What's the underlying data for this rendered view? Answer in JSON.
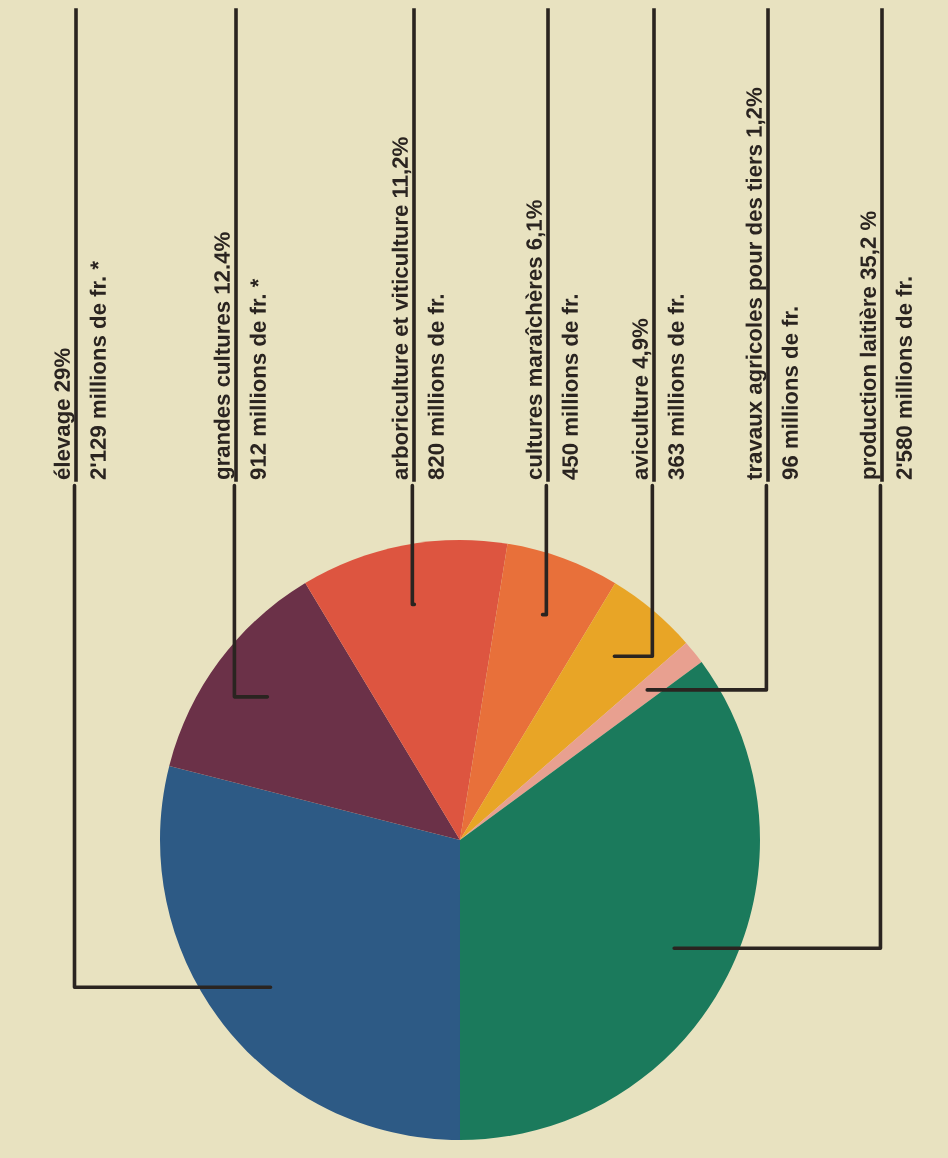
{
  "chart_data": {
    "type": "pie",
    "categories": [
      "élevage 29%",
      "grandes cultures 12.4%",
      "arboriculture et viticulture 11,2%",
      "cultures maraîchères 6,1%",
      "aviculture 4,9%",
      "travaux agricoles pour des tiers 1,2%",
      "production laitière 35,2 %"
    ],
    "values": [
      2129,
      912,
      820,
      450,
      363,
      96,
      2580
    ],
    "value_labels": [
      "2'129 millions de fr. *",
      "912 millions de fr. *",
      "820 millions de fr.",
      "450 millions de fr.",
      "363 millions de fr.",
      "96 millions de fr.",
      "2'580 millions de fr."
    ],
    "colors": [
      "#2d5a85",
      "#6b3148",
      "#dd5540",
      "#e8703a",
      "#e8a526",
      "#e8a090",
      "#1b7a5c"
    ]
  }
}
